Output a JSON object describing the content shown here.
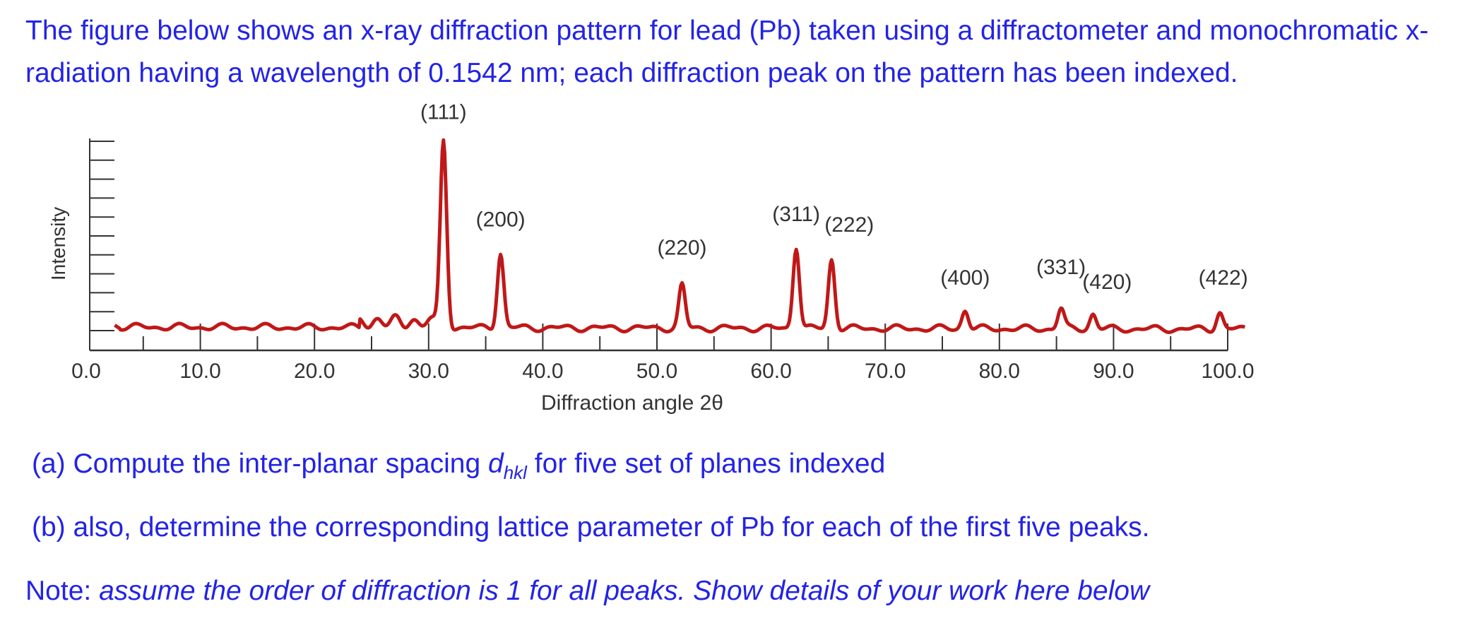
{
  "intro": {
    "line1": "The figure below shows an x-ray diffraction pattern for lead (Pb) taken using a diffractometer and monochromatic x-",
    "line2": "radiation having a wavelength of 0.1542 nm; each diffraction peak on the pattern has been indexed."
  },
  "question_a": {
    "prefix": "(a) Compute the inter-planar spacing ",
    "symbol": "d",
    "subscript": "hkl",
    "suffix": " for five set of planes indexed"
  },
  "question_b": {
    "text": "(b) also, determine the corresponding lattice parameter of Pb for each of the first five peaks."
  },
  "note": {
    "label": "Note: ",
    "text": "assume the order of diffraction is 1 for all peaks. Show details of your work here below"
  },
  "colors": {
    "text": "#2323e6",
    "trace": "#c01818",
    "axis": "#333333"
  },
  "chart_data": {
    "type": "line",
    "title": "",
    "xlabel": "Diffraction angle 2θ",
    "ylabel": "Intensity",
    "xlim": [
      0,
      100
    ],
    "ylim": [
      0,
      100
    ],
    "grid": false,
    "x_ticks": [
      "0.0",
      "10.0",
      "20.0",
      "30.0",
      "40.0",
      "50.0",
      "60.0",
      "70.0",
      "80.0",
      "90.0",
      "100.0"
    ],
    "peaks": [
      {
        "label": "(111)",
        "two_theta": 31.3,
        "intensity": 100
      },
      {
        "label": "(200)",
        "two_theta": 36.3,
        "intensity": 40
      },
      {
        "label": "(220)",
        "two_theta": 52.2,
        "intensity": 23
      },
      {
        "label": "(311)",
        "two_theta": 62.2,
        "intensity": 44
      },
      {
        "label": "(222)",
        "two_theta": 65.3,
        "intensity": 37
      },
      {
        "label": "(400)",
        "two_theta": 77.0,
        "intensity": 10
      },
      {
        "label": "(331)",
        "two_theta": 85.4,
        "intensity": 11
      },
      {
        "label": "(420)",
        "two_theta": 88.2,
        "intensity": 8
      },
      {
        "label": "(422)",
        "two_theta": 99.3,
        "intensity": 9
      }
    ]
  }
}
